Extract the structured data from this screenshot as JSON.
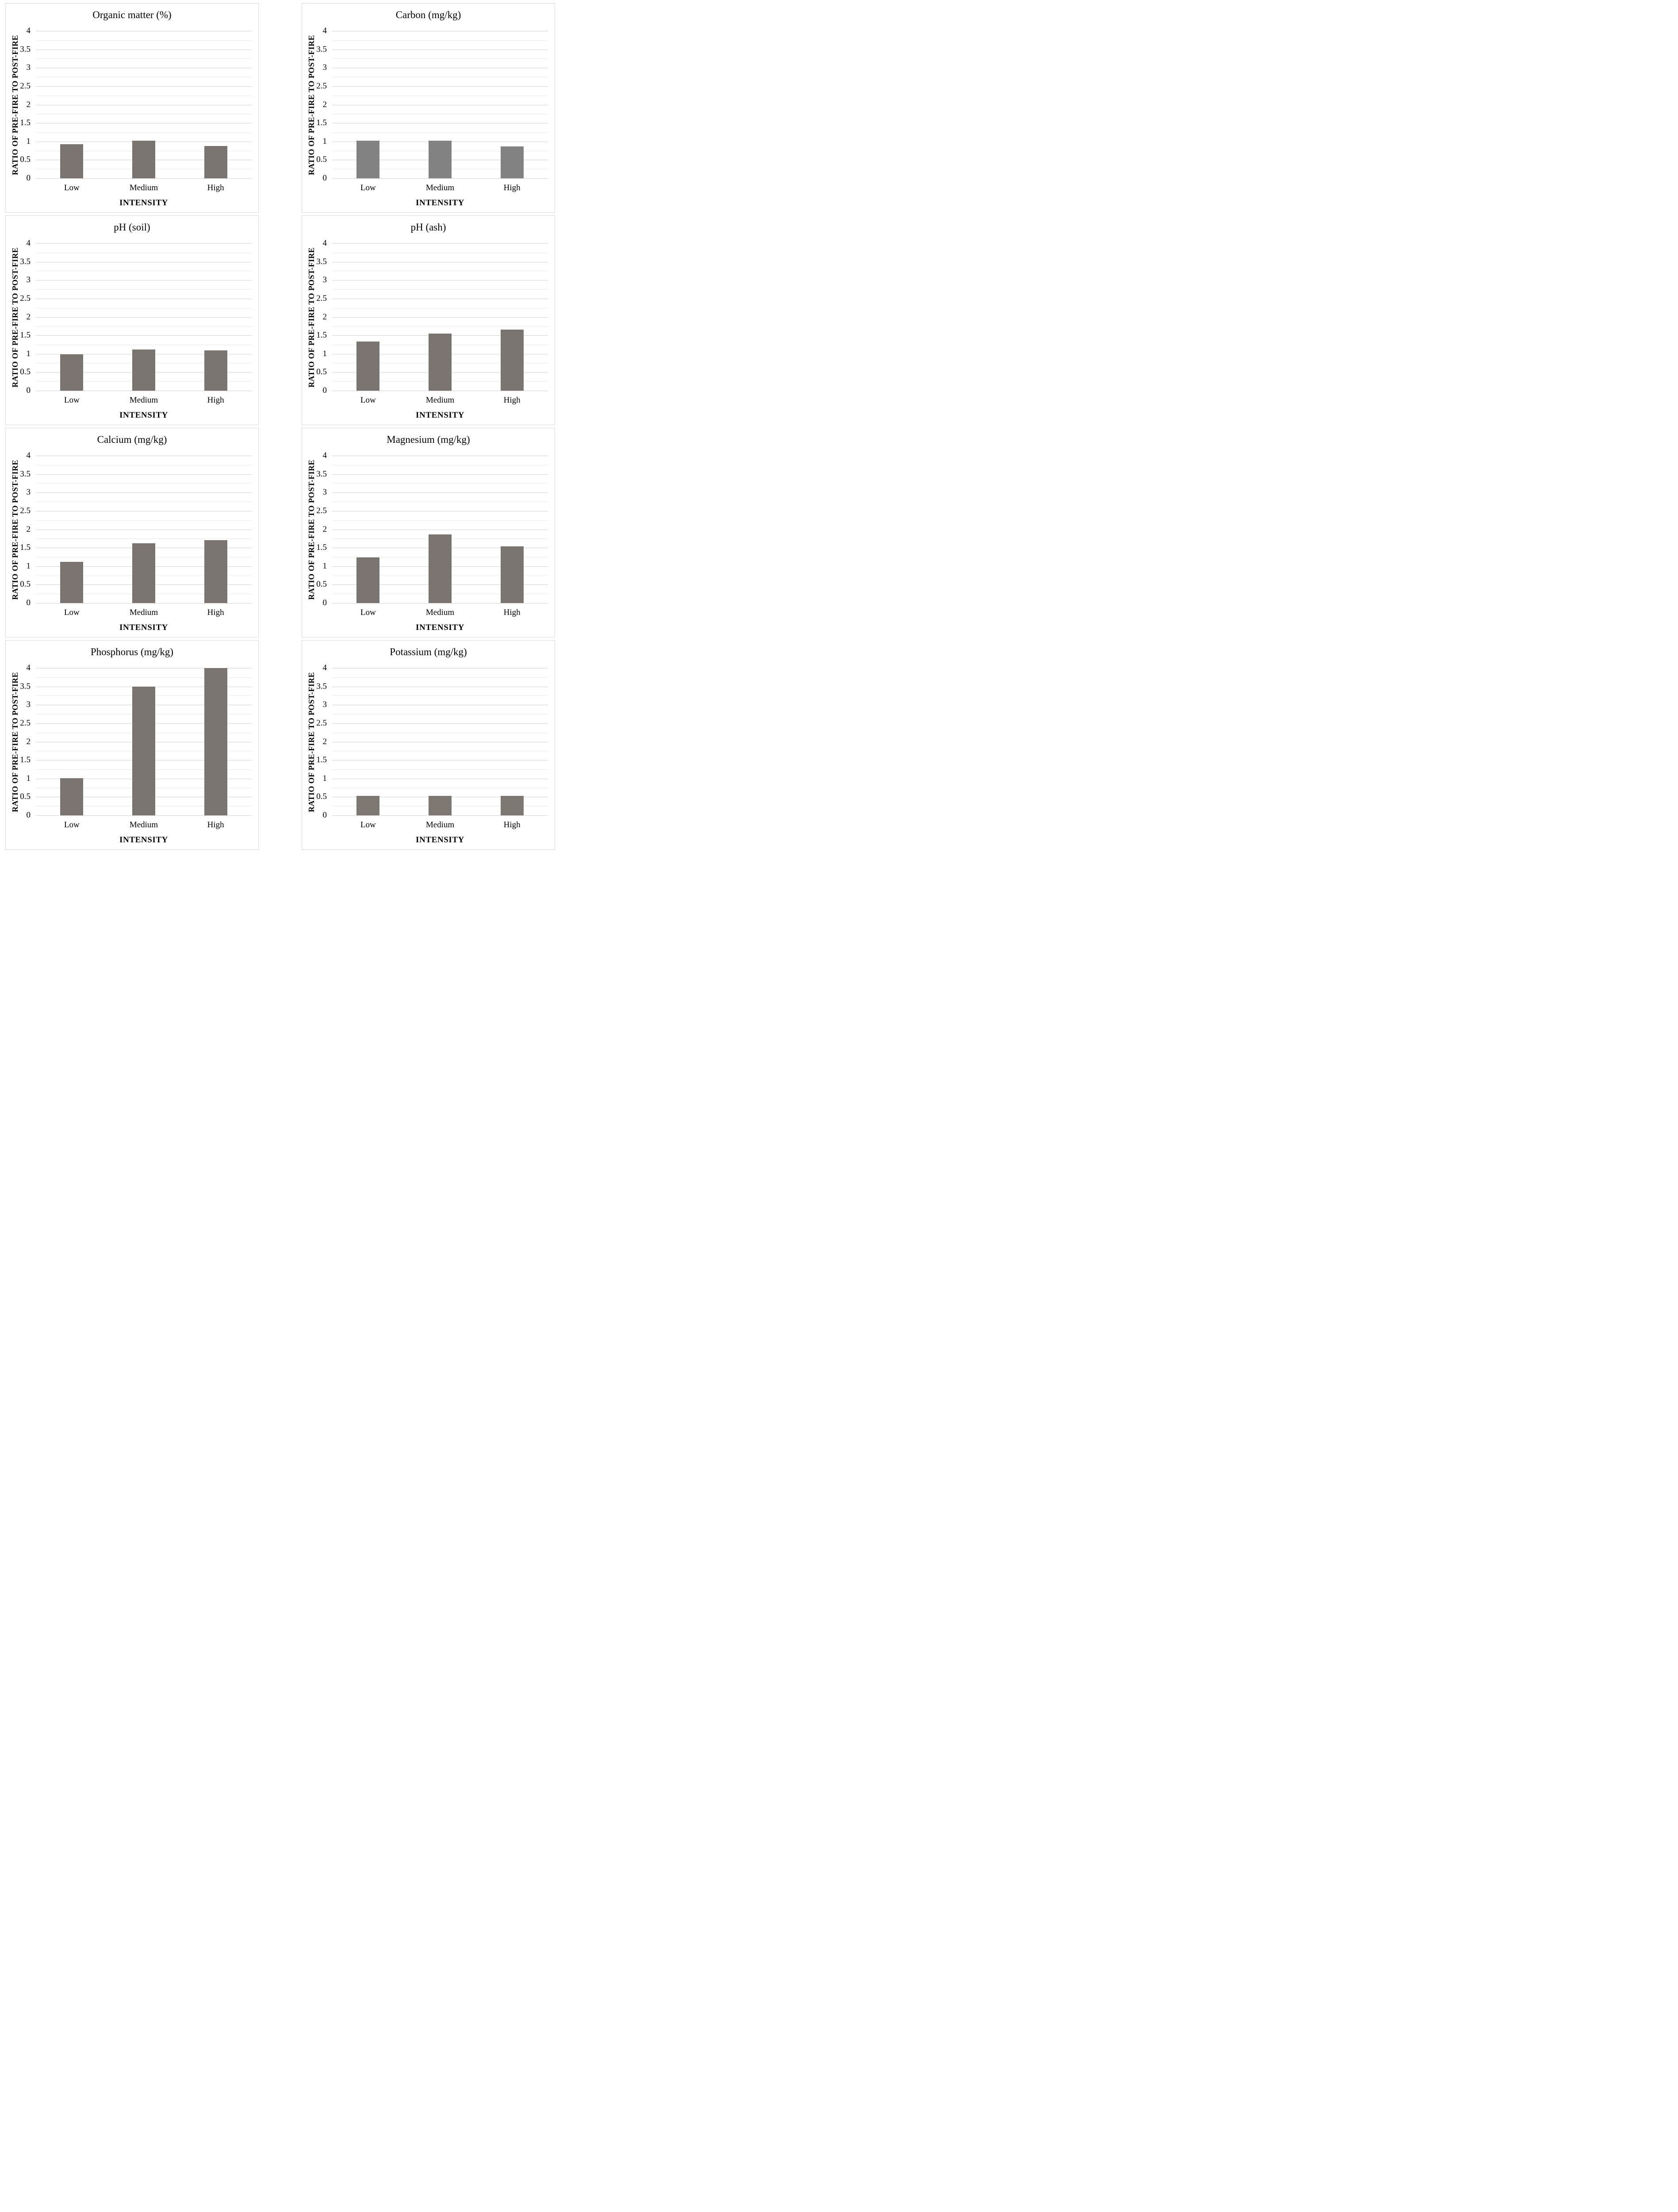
{
  "page": {
    "background": "#ffffff",
    "panel_border_color": "#d7d7d7",
    "gridline_major_color": "#d2d2d2",
    "gridline_minor_color": "#eaeaea"
  },
  "chart_data": [
    {
      "type": "bar",
      "title": "Organic matter (%)",
      "ylabel": "RATIO OF PRE-FIRE TO POST-FIRE",
      "xlabel": "INTENSITY",
      "categories": [
        "Low",
        "Medium",
        "High"
      ],
      "values": [
        0.92,
        1.02,
        0.88
      ],
      "ylim": [
        0,
        4
      ],
      "ytick_labels": [
        "0",
        "0.5",
        "1",
        "1.5",
        "2",
        "2.5",
        "3",
        "3.5",
        "4"
      ],
      "grid_minor_step": 0.25,
      "grid": true,
      "legend": "none",
      "bar_color": "#7a7470"
    },
    {
      "type": "bar",
      "title": "Carbon (mg/kg)",
      "ylabel": "RATIO OF PRE-FIRE TO POST-FIRE",
      "xlabel": "INTENSITY",
      "categories": [
        "Low",
        "Medium",
        "High"
      ],
      "values": [
        1.02,
        1.02,
        0.87
      ],
      "ylim": [
        0,
        4
      ],
      "ytick_labels": [
        "0",
        "0.5",
        "1",
        "1.5",
        "2",
        "2.5",
        "3",
        "3.5",
        "4"
      ],
      "grid_minor_step": 0.25,
      "grid": true,
      "legend": "none",
      "bar_color": "#828282"
    },
    {
      "type": "bar",
      "title": "pH (soil)",
      "ylabel": "RATIO OF PRE-FIRE TO POST-FIRE",
      "xlabel": "INTENSITY",
      "categories": [
        "Low",
        "Medium",
        "High"
      ],
      "values": [
        0.98,
        1.12,
        1.09
      ],
      "ylim": [
        0,
        4
      ],
      "ytick_labels": [
        "0",
        "0.5",
        "1",
        "1.5",
        "2",
        "2.5",
        "3",
        "3.5",
        "4"
      ],
      "grid_minor_step": 0.25,
      "grid": true,
      "legend": "none",
      "bar_color": "#7a7470"
    },
    {
      "type": "bar",
      "title": "pH (ash)",
      "ylabel": "RATIO OF PRE-FIRE TO POST-FIRE",
      "xlabel": "INTENSITY",
      "categories": [
        "Low",
        "Medium",
        "High"
      ],
      "values": [
        1.33,
        1.55,
        1.66
      ],
      "ylim": [
        0,
        4
      ],
      "ytick_labels": [
        "0",
        "0.5",
        "1",
        "1.5",
        "2",
        "2.5",
        "3",
        "3.5",
        "4"
      ],
      "grid_minor_step": 0.25,
      "grid": true,
      "legend": "none",
      "bar_color": "#7a7470"
    },
    {
      "type": "bar",
      "title": "Calcium (mg/kg)",
      "ylabel": "RATIO OF PRE-FIRE TO POST-FIRE",
      "xlabel": "INTENSITY",
      "categories": [
        "Low",
        "Medium",
        "High"
      ],
      "values": [
        1.12,
        1.62,
        1.7
      ],
      "ylim": [
        0,
        4
      ],
      "ytick_labels": [
        "0",
        "0.5",
        "1",
        "1.5",
        "2",
        "2.5",
        "3",
        "3.5",
        "4"
      ],
      "grid_minor_step": 0.25,
      "grid": true,
      "legend": "none",
      "bar_color": "#7a7470"
    },
    {
      "type": "bar",
      "title": "Magnesium (mg/kg)",
      "ylabel": "RATIO OF PRE-FIRE TO POST-FIRE",
      "xlabel": "INTENSITY",
      "categories": [
        "Low",
        "Medium",
        "High"
      ],
      "values": [
        1.24,
        1.86,
        1.54
      ],
      "ylim": [
        0,
        4
      ],
      "ytick_labels": [
        "0",
        "0.5",
        "1",
        "1.5",
        "2",
        "2.5",
        "3",
        "3.5",
        "4"
      ],
      "grid_minor_step": 0.25,
      "grid": true,
      "legend": "none",
      "bar_color": "#7a7470"
    },
    {
      "type": "bar",
      "title": "Phosphorus (mg/kg)",
      "ylabel": "RATIO OF PRE-FIRE TO POST-FIRE",
      "xlabel": "INTENSITY",
      "categories": [
        "Low",
        "Medium",
        "High"
      ],
      "values": [
        1.01,
        3.5,
        4.0
      ],
      "ylim": [
        0,
        4
      ],
      "ytick_labels": [
        "0",
        "0.5",
        "1",
        "1.5",
        "2",
        "2.5",
        "3",
        "3.5",
        "4"
      ],
      "grid_minor_step": 0.25,
      "grid": true,
      "legend": "none",
      "bar_color": "#7a7470"
    },
    {
      "type": "bar",
      "title": "Potassium (mg/kg)",
      "ylabel": "RATIO OF PRE-FIRE TO POST-FIRE",
      "xlabel": "INTENSITY",
      "categories": [
        "Low",
        "Medium",
        "High"
      ],
      "values": [
        0.53,
        0.53,
        0.53
      ],
      "ylim": [
        0,
        4
      ],
      "ytick_labels": [
        "0",
        "0.5",
        "1",
        "1.5",
        "2",
        "2.5",
        "3",
        "3.5",
        "4"
      ],
      "grid_minor_step": 0.25,
      "grid": true,
      "legend": "none",
      "bar_color": "#7d7772"
    }
  ]
}
